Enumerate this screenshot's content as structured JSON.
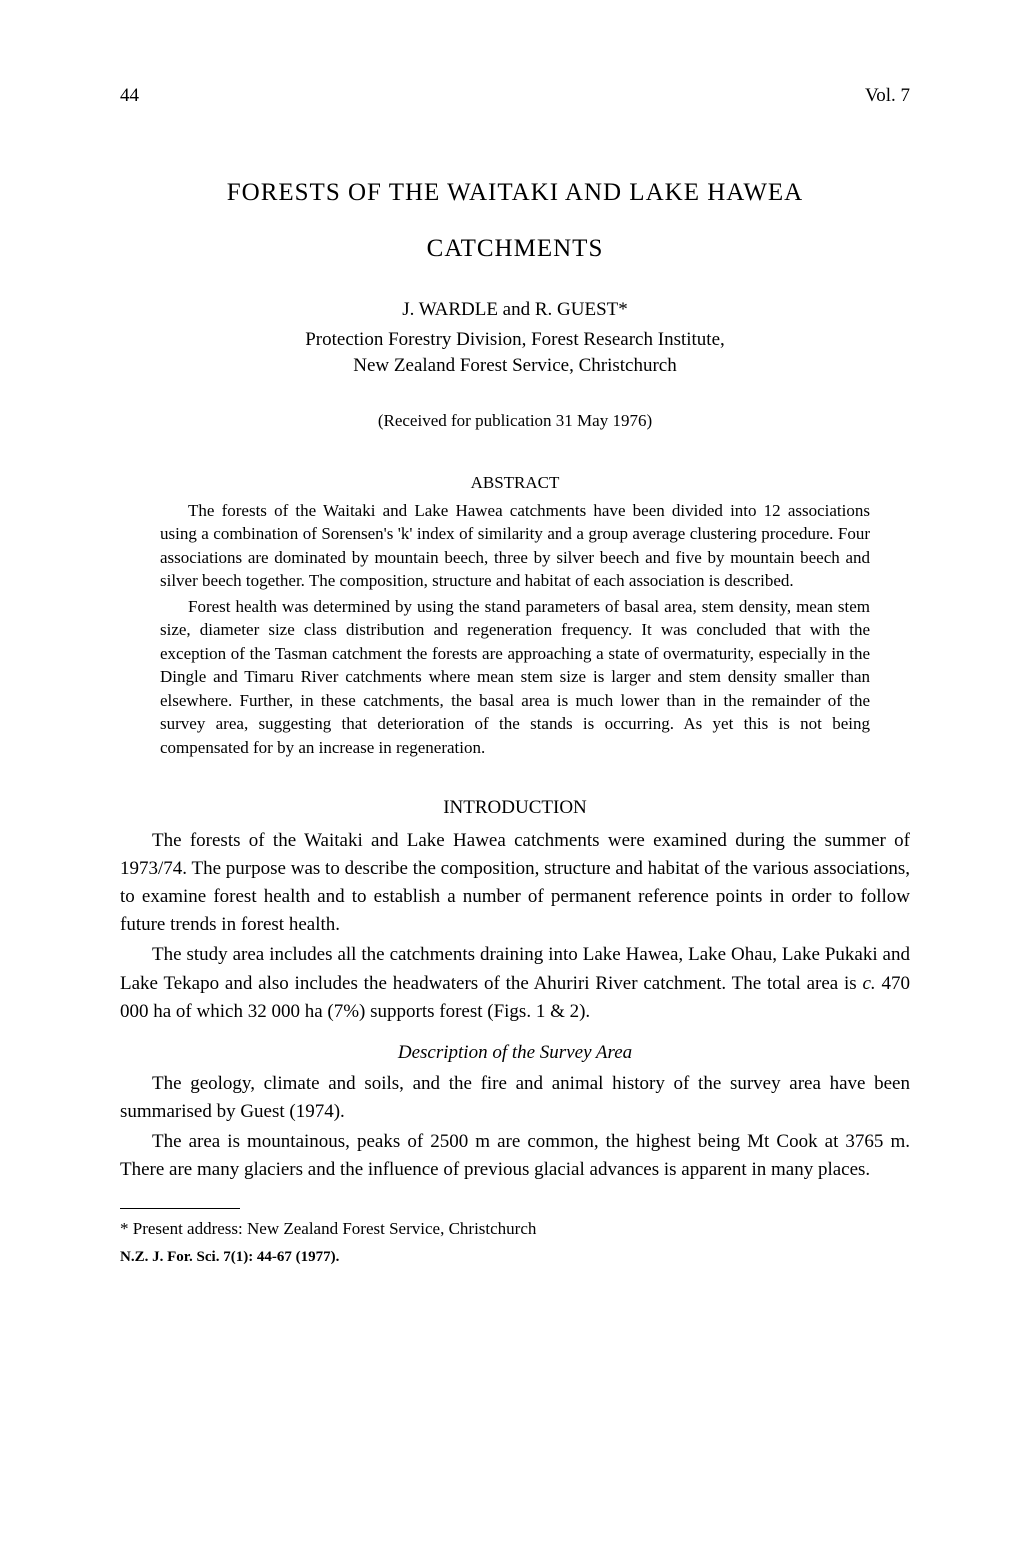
{
  "header": {
    "page_number": "44",
    "volume": "Vol. 7"
  },
  "title": {
    "line1": "FORESTS OF THE WAITAKI AND LAKE HAWEA",
    "line2": "CATCHMENTS"
  },
  "authors": "J. WARDLE and R. GUEST*",
  "affiliation": {
    "line1": "Protection Forestry Division, Forest Research Institute,",
    "line2": "New Zealand Forest Service, Christchurch"
  },
  "received": "(Received for publication 31 May 1976)",
  "abstract": {
    "heading": "ABSTRACT",
    "para1": "The forests of the Waitaki and Lake Hawea catchments have been divided into 12 associations using a combination of Sorensen's 'k' index of similarity and a group average clustering procedure. Four associations are dominated by mountain beech, three by silver beech and five by mountain beech and silver beech together. The composition, structure and habitat of each association is described.",
    "para2": "Forest health was determined by using the stand parameters of basal area, stem density, mean stem size, diameter size class distribution and regeneration frequency. It was concluded that with the exception of the Tasman catchment the forests are approaching a state of overmaturity, especially in the Dingle and Timaru River catchments where mean stem size is larger and stem density smaller than elsewhere. Further, in these catchments, the basal area is much lower than in the remainder of the survey area, suggesting that deterioration of the stands is occurring. As yet this is not being compensated for by an increase in regeneration."
  },
  "introduction": {
    "heading": "INTRODUCTION",
    "para1": "The forests of the Waitaki and Lake Hawea catchments were examined during the summer of 1973/74. The purpose was to describe the composition, structure and habitat of the various associations, to examine forest health and to establish a number of permanent reference points in order to follow future trends in forest health.",
    "para2_part1": "The study area includes all the catchments draining into Lake Hawea, Lake Ohau, Lake Pukaki and Lake Tekapo and also includes the headwaters of the Ahuriri River catchment. The total area is ",
    "para2_italic": "c.",
    "para2_part2": " 470 000 ha of which 32 000 ha (7%) supports forest (Figs. 1 & 2)."
  },
  "description": {
    "heading": "Description of the Survey Area",
    "para1": "The geology, climate and soils, and the fire and animal history of the survey area have been summarised by Guest (1974).",
    "para2": "The area is mountainous, peaks of 2500 m are common, the highest being Mt Cook at 3765 m. There are many glaciers and the influence of previous glacial advances is apparent in many places."
  },
  "footnote": "* Present address: New Zealand Forest Service, Christchurch",
  "citation": "N.Z. J. For. Sci. 7(1): 44-67 (1977)."
}
